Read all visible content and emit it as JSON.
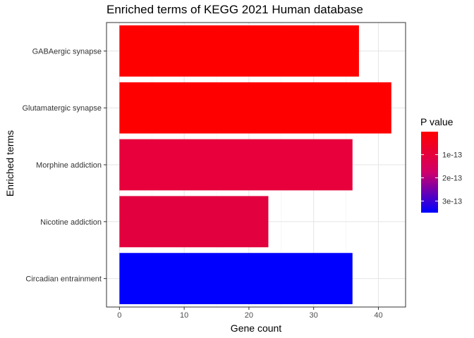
{
  "chart_data": {
    "type": "bar",
    "orientation": "horizontal",
    "title": "Enriched terms of KEGG 2021 Human database",
    "xlabel": "Gene count",
    "ylabel": "Enriched terms",
    "xlim": [
      -2,
      44.2
    ],
    "xticks": [
      "0",
      "10",
      "20",
      "30",
      "40"
    ],
    "grid": true,
    "categories": [
      "GABAergic synapse",
      "Glutamatergic synapse",
      "Morphine addiction",
      "Nicotine addiction",
      "Circadian entrainment"
    ],
    "values": [
      37,
      42,
      36,
      23,
      36
    ],
    "p_values": [
      1e-15,
      1e-15,
      4e-14,
      6e-14,
      3.5e-13
    ],
    "bar_colors": [
      "#FF0000",
      "#FF0000",
      "#E8003C",
      "#E2003E",
      "#0000FF"
    ],
    "legend": {
      "title": "P value",
      "position": "right",
      "labels": [
        "1e-13",
        "2e-13",
        "3e-13"
      ],
      "label_values": [
        1e-13,
        2e-13,
        3e-13
      ],
      "range": [
        1e-15,
        3.5e-13
      ],
      "low_color": "#FF0000",
      "high_color": "#0000FF"
    }
  }
}
